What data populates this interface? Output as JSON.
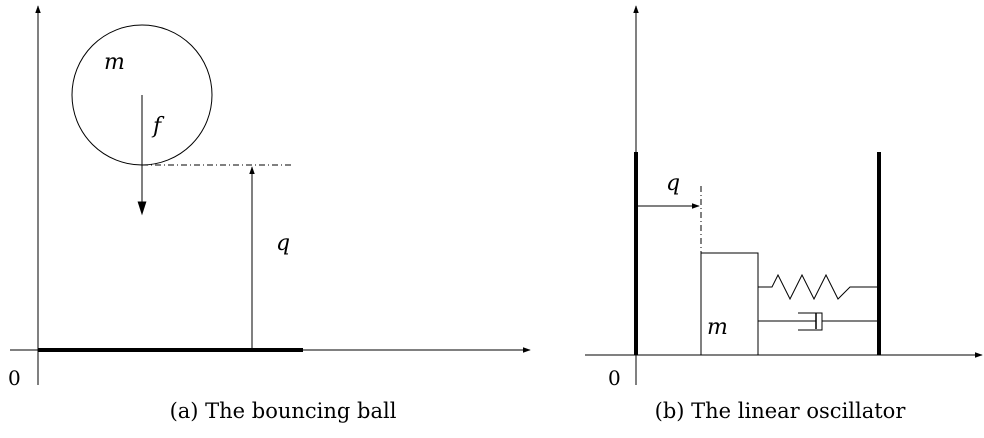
{
  "panel_a": {
    "mass_label": "m",
    "force_label": "f",
    "position_label": "q",
    "origin_label": "0",
    "caption": "(a) The bouncing ball"
  },
  "panel_b": {
    "position_label": "q",
    "mass_label": "m",
    "origin_label": "0",
    "caption": "(b) The linear oscillator"
  }
}
